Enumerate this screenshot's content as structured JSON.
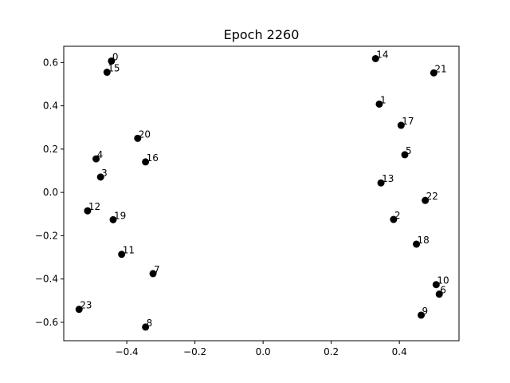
{
  "chart_data": {
    "type": "scatter",
    "title": "Epoch 2260",
    "xlabel": "",
    "ylabel": "",
    "xlim": [
      -0.585,
      0.575
    ],
    "ylim": [
      -0.685,
      0.675
    ],
    "xticks": [
      -0.4,
      -0.2,
      0.0,
      0.2,
      0.4
    ],
    "xtick_labels": [
      "−0.4",
      "−0.2",
      "0.0",
      "0.2",
      "0.4"
    ],
    "yticks": [
      -0.6,
      -0.4,
      -0.2,
      0.0,
      0.2,
      0.4,
      0.6
    ],
    "ytick_labels": [
      "−0.6",
      "−0.4",
      "−0.2",
      "0.0",
      "0.2",
      "0.4",
      "0.6"
    ],
    "grid": false,
    "marker_color": "#000000",
    "points": [
      {
        "label": "0",
        "x": -0.445,
        "y": 0.607
      },
      {
        "label": "1",
        "x": 0.341,
        "y": 0.408
      },
      {
        "label": "2",
        "x": 0.383,
        "y": -0.125
      },
      {
        "label": "3",
        "x": -0.477,
        "y": 0.071
      },
      {
        "label": "4",
        "x": -0.49,
        "y": 0.155
      },
      {
        "label": "5",
        "x": 0.416,
        "y": 0.174
      },
      {
        "label": "6",
        "x": 0.517,
        "y": -0.47
      },
      {
        "label": "7",
        "x": -0.323,
        "y": -0.375
      },
      {
        "label": "8",
        "x": -0.345,
        "y": -0.622
      },
      {
        "label": "9",
        "x": 0.464,
        "y": -0.567
      },
      {
        "label": "10",
        "x": 0.508,
        "y": -0.426
      },
      {
        "label": "11",
        "x": -0.415,
        "y": -0.286
      },
      {
        "label": "12",
        "x": -0.515,
        "y": -0.085
      },
      {
        "label": "13",
        "x": 0.346,
        "y": 0.044
      },
      {
        "label": "14",
        "x": 0.33,
        "y": 0.618
      },
      {
        "label": "15",
        "x": -0.458,
        "y": 0.555
      },
      {
        "label": "16",
        "x": -0.345,
        "y": 0.141
      },
      {
        "label": "17",
        "x": 0.405,
        "y": 0.31
      },
      {
        "label": "18",
        "x": 0.45,
        "y": -0.239
      },
      {
        "label": "19",
        "x": -0.44,
        "y": -0.126
      },
      {
        "label": "20",
        "x": -0.368,
        "y": 0.25
      },
      {
        "label": "21",
        "x": 0.501,
        "y": 0.552
      },
      {
        "label": "22",
        "x": 0.476,
        "y": -0.037
      },
      {
        "label": "23",
        "x": -0.54,
        "y": -0.54
      }
    ]
  }
}
